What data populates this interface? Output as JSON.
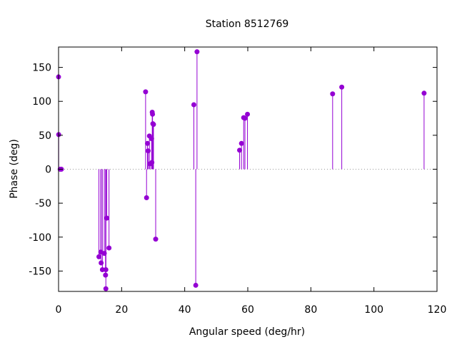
{
  "chart_data": {
    "type": "scatter",
    "style": "impulses with point markers",
    "title": "Station 8512769",
    "xlabel": "Angular speed (deg/hr)",
    "ylabel": "Phase (deg)",
    "xlim": [
      0,
      120
    ],
    "ylim": [
      -180,
      180
    ],
    "xticks": [
      0,
      20,
      40,
      60,
      80,
      100,
      120
    ],
    "yticks": [
      -150,
      -100,
      -50,
      0,
      50,
      100,
      150
    ],
    "grid": false,
    "zero_line": "dotted",
    "color": "#9400d3",
    "series": [
      {
        "points": [
          [
            0.0,
            136
          ],
          [
            0.04,
            51
          ],
          [
            0.5,
            0
          ],
          [
            0.9,
            0
          ],
          [
            12.8,
            -129
          ],
          [
            13.4,
            -122
          ],
          [
            13.5,
            -138
          ],
          [
            13.9,
            -148
          ],
          [
            14.5,
            -124
          ],
          [
            14.9,
            -156
          ],
          [
            15.0,
            -176
          ],
          [
            15.0,
            -148
          ],
          [
            15.3,
            -72
          ],
          [
            16.0,
            -116
          ],
          [
            27.6,
            114
          ],
          [
            27.9,
            -42
          ],
          [
            28.2,
            38
          ],
          [
            28.4,
            27
          ],
          [
            28.8,
            49
          ],
          [
            29.5,
            45
          ],
          [
            29.0,
            8
          ],
          [
            29.6,
            10
          ],
          [
            29.7,
            84
          ],
          [
            29.8,
            81
          ],
          [
            29.9,
            67
          ],
          [
            30.1,
            66
          ],
          [
            30.8,
            -103
          ],
          [
            42.9,
            95
          ],
          [
            43.5,
            -171
          ],
          [
            43.9,
            173
          ],
          [
            57.4,
            28
          ],
          [
            58.0,
            38
          ],
          [
            58.7,
            76
          ],
          [
            59.1,
            75
          ],
          [
            59.9,
            81
          ],
          [
            86.9,
            111
          ],
          [
            89.8,
            121
          ],
          [
            115.9,
            112
          ]
        ]
      }
    ]
  }
}
